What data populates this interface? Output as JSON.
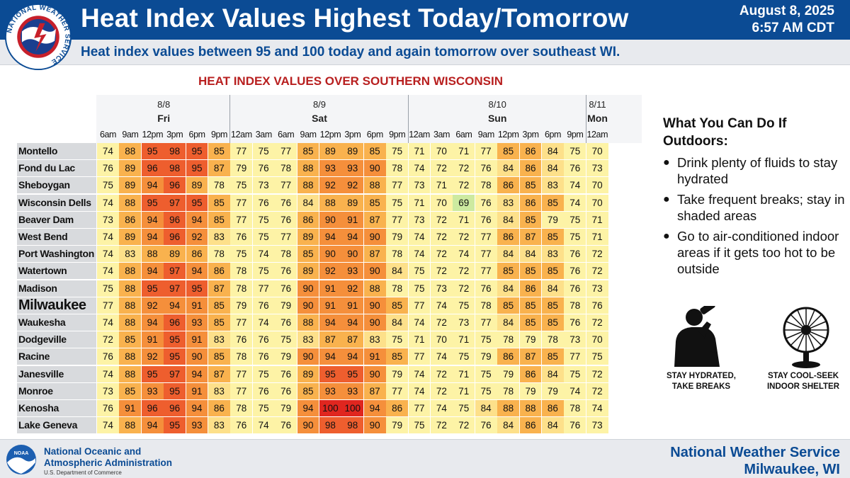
{
  "header": {
    "title": "Heat Index Values Highest Today/Tomorrow",
    "date": "August 8, 2025",
    "time": "6:57 AM CDT",
    "subtitle": "Heat index values between 95 and 100 today and again tomorrow over southeast WI.",
    "logo_text": "NATIONAL WEATHER SERVICE"
  },
  "table": {
    "title": "HEAT INDEX VALUES OVER SOUTHERN WISCONSIN",
    "days": [
      {
        "date": "8/8",
        "day": "Fri"
      },
      {
        "date": "8/9",
        "day": "Sat"
      },
      {
        "date": "8/10",
        "day": "Sun"
      },
      {
        "date": "8/11",
        "day": "Mon"
      }
    ],
    "times": [
      "6am",
      "9am",
      "12pm",
      "3pm",
      "6pm",
      "9pm",
      "12am",
      "3am",
      "6am",
      "9am",
      "12pm",
      "3pm",
      "6pm",
      "9pm",
      "12am",
      "3am",
      "6am",
      "9am",
      "12pm",
      "3pm",
      "6pm",
      "9pm",
      "12am"
    ],
    "rows": [
      {
        "name": "Montello",
        "values": [
          74,
          88,
          95,
          98,
          95,
          85,
          77,
          75,
          77,
          85,
          89,
          89,
          85,
          75,
          71,
          70,
          71,
          77,
          85,
          86,
          84,
          75,
          70
        ]
      },
      {
        "name": "Fond du Lac",
        "values": [
          76,
          89,
          96,
          98,
          95,
          87,
          79,
          76,
          78,
          88,
          93,
          93,
          90,
          78,
          74,
          72,
          72,
          76,
          84,
          86,
          84,
          76,
          73
        ]
      },
      {
        "name": "Sheboygan",
        "values": [
          75,
          89,
          94,
          96,
          89,
          78,
          75,
          73,
          77,
          88,
          92,
          92,
          88,
          77,
          73,
          71,
          72,
          78,
          86,
          85,
          83,
          74,
          70
        ]
      },
      {
        "name": "Wisconsin Dells",
        "values": [
          74,
          88,
          95,
          97,
          95,
          85,
          77,
          76,
          76,
          84,
          88,
          89,
          85,
          75,
          71,
          70,
          69,
          76,
          83,
          86,
          85,
          74,
          70
        ]
      },
      {
        "name": "Beaver Dam",
        "values": [
          73,
          86,
          94,
          96,
          94,
          85,
          77,
          75,
          76,
          86,
          90,
          91,
          87,
          77,
          73,
          72,
          71,
          76,
          84,
          85,
          79,
          75,
          71
        ]
      },
      {
        "name": "West Bend",
        "values": [
          74,
          89,
          94,
          96,
          92,
          83,
          76,
          75,
          77,
          89,
          94,
          94,
          90,
          79,
          74,
          72,
          72,
          77,
          86,
          87,
          85,
          75,
          71
        ]
      },
      {
        "name": "Port Washington",
        "values": [
          74,
          83,
          88,
          89,
          86,
          78,
          75,
          74,
          78,
          85,
          90,
          90,
          87,
          78,
          74,
          72,
          74,
          77,
          84,
          84,
          83,
          76,
          72
        ]
      },
      {
        "name": "Watertown",
        "values": [
          74,
          88,
          94,
          97,
          94,
          86,
          78,
          75,
          76,
          89,
          92,
          93,
          90,
          84,
          75,
          72,
          72,
          77,
          85,
          85,
          85,
          76,
          72
        ]
      },
      {
        "name": "Madison",
        "values": [
          75,
          88,
          95,
          97,
          95,
          87,
          78,
          77,
          76,
          90,
          91,
          92,
          88,
          78,
          75,
          73,
          72,
          76,
          84,
          86,
          84,
          76,
          73
        ]
      },
      {
        "name": "Milwaukee",
        "values": [
          77,
          88,
          92,
          94,
          91,
          85,
          79,
          76,
          79,
          90,
          91,
          91,
          90,
          85,
          77,
          74,
          75,
          78,
          85,
          85,
          85,
          78,
          76
        ]
      },
      {
        "name": "Waukesha",
        "values": [
          74,
          88,
          94,
          96,
          93,
          85,
          77,
          74,
          76,
          88,
          94,
          94,
          90,
          84,
          74,
          72,
          73,
          77,
          84,
          85,
          85,
          76,
          72
        ]
      },
      {
        "name": "Dodgeville",
        "values": [
          72,
          85,
          91,
          95,
          91,
          83,
          76,
          76,
          75,
          83,
          87,
          87,
          83,
          75,
          71,
          70,
          71,
          75,
          78,
          79,
          78,
          73,
          70
        ]
      },
      {
        "name": "Racine",
        "values": [
          76,
          88,
          92,
          95,
          90,
          85,
          78,
          76,
          79,
          90,
          94,
          94,
          91,
          85,
          77,
          74,
          75,
          79,
          86,
          87,
          85,
          77,
          75
        ]
      },
      {
        "name": "Janesville",
        "values": [
          74,
          88,
          95,
          97,
          94,
          87,
          77,
          75,
          76,
          89,
          95,
          95,
          90,
          79,
          74,
          72,
          71,
          75,
          79,
          86,
          84,
          75,
          72
        ]
      },
      {
        "name": "Monroe",
        "values": [
          73,
          85,
          93,
          95,
          91,
          83,
          77,
          76,
          76,
          85,
          93,
          93,
          87,
          77,
          74,
          72,
          71,
          75,
          78,
          79,
          79,
          74,
          72
        ]
      },
      {
        "name": "Kenosha",
        "values": [
          76,
          91,
          96,
          96,
          94,
          86,
          78,
          75,
          79,
          94,
          100,
          100,
          94,
          86,
          77,
          74,
          75,
          84,
          88,
          88,
          86,
          78,
          74
        ]
      },
      {
        "name": "Lake Geneva",
        "values": [
          74,
          88,
          94,
          95,
          93,
          83,
          76,
          74,
          76,
          90,
          98,
          98,
          90,
          79,
          75,
          72,
          72,
          76,
          84,
          86,
          84,
          76,
          73
        ]
      }
    ],
    "highlight_row": "Milwaukee"
  },
  "panel": {
    "title": "What You Can Do If Outdoors:",
    "tips": [
      "Drink plenty of fluids to stay hydrated",
      "Take frequent breaks; stay in shaded areas",
      "Go to air-conditioned indoor areas if it gets too hot to be outside"
    ],
    "icons": [
      {
        "icon": "drinking-person-icon",
        "caption_1": "STAY HYDRATED,",
        "caption_2": "TAKE BREAKS"
      },
      {
        "icon": "fan-icon",
        "caption_1": "STAY COOL-SEEK",
        "caption_2": "INDOOR SHELTER"
      }
    ]
  },
  "footer": {
    "noaa_line1": "National Oceanic and",
    "noaa_line2": "Atmospheric Administration",
    "noaa_sub": "U.S. Department of Commerce",
    "noaa_logo_text": "NOAA",
    "nws_line1": "National Weather Service",
    "nws_line2": "Milwaukee, WI"
  },
  "colors": {
    "header_blue": "#0b4b94",
    "title_red": "#b81f1f",
    "cell_69": "#cdeaa0",
    "cell_70_79": "#fdf3a6",
    "cell_80_84": "#fde08a",
    "cell_85_89": "#f9b24e",
    "cell_90_94": "#f58f3b",
    "cell_95_98": "#ee5e2e",
    "cell_100": "#e0261f"
  }
}
